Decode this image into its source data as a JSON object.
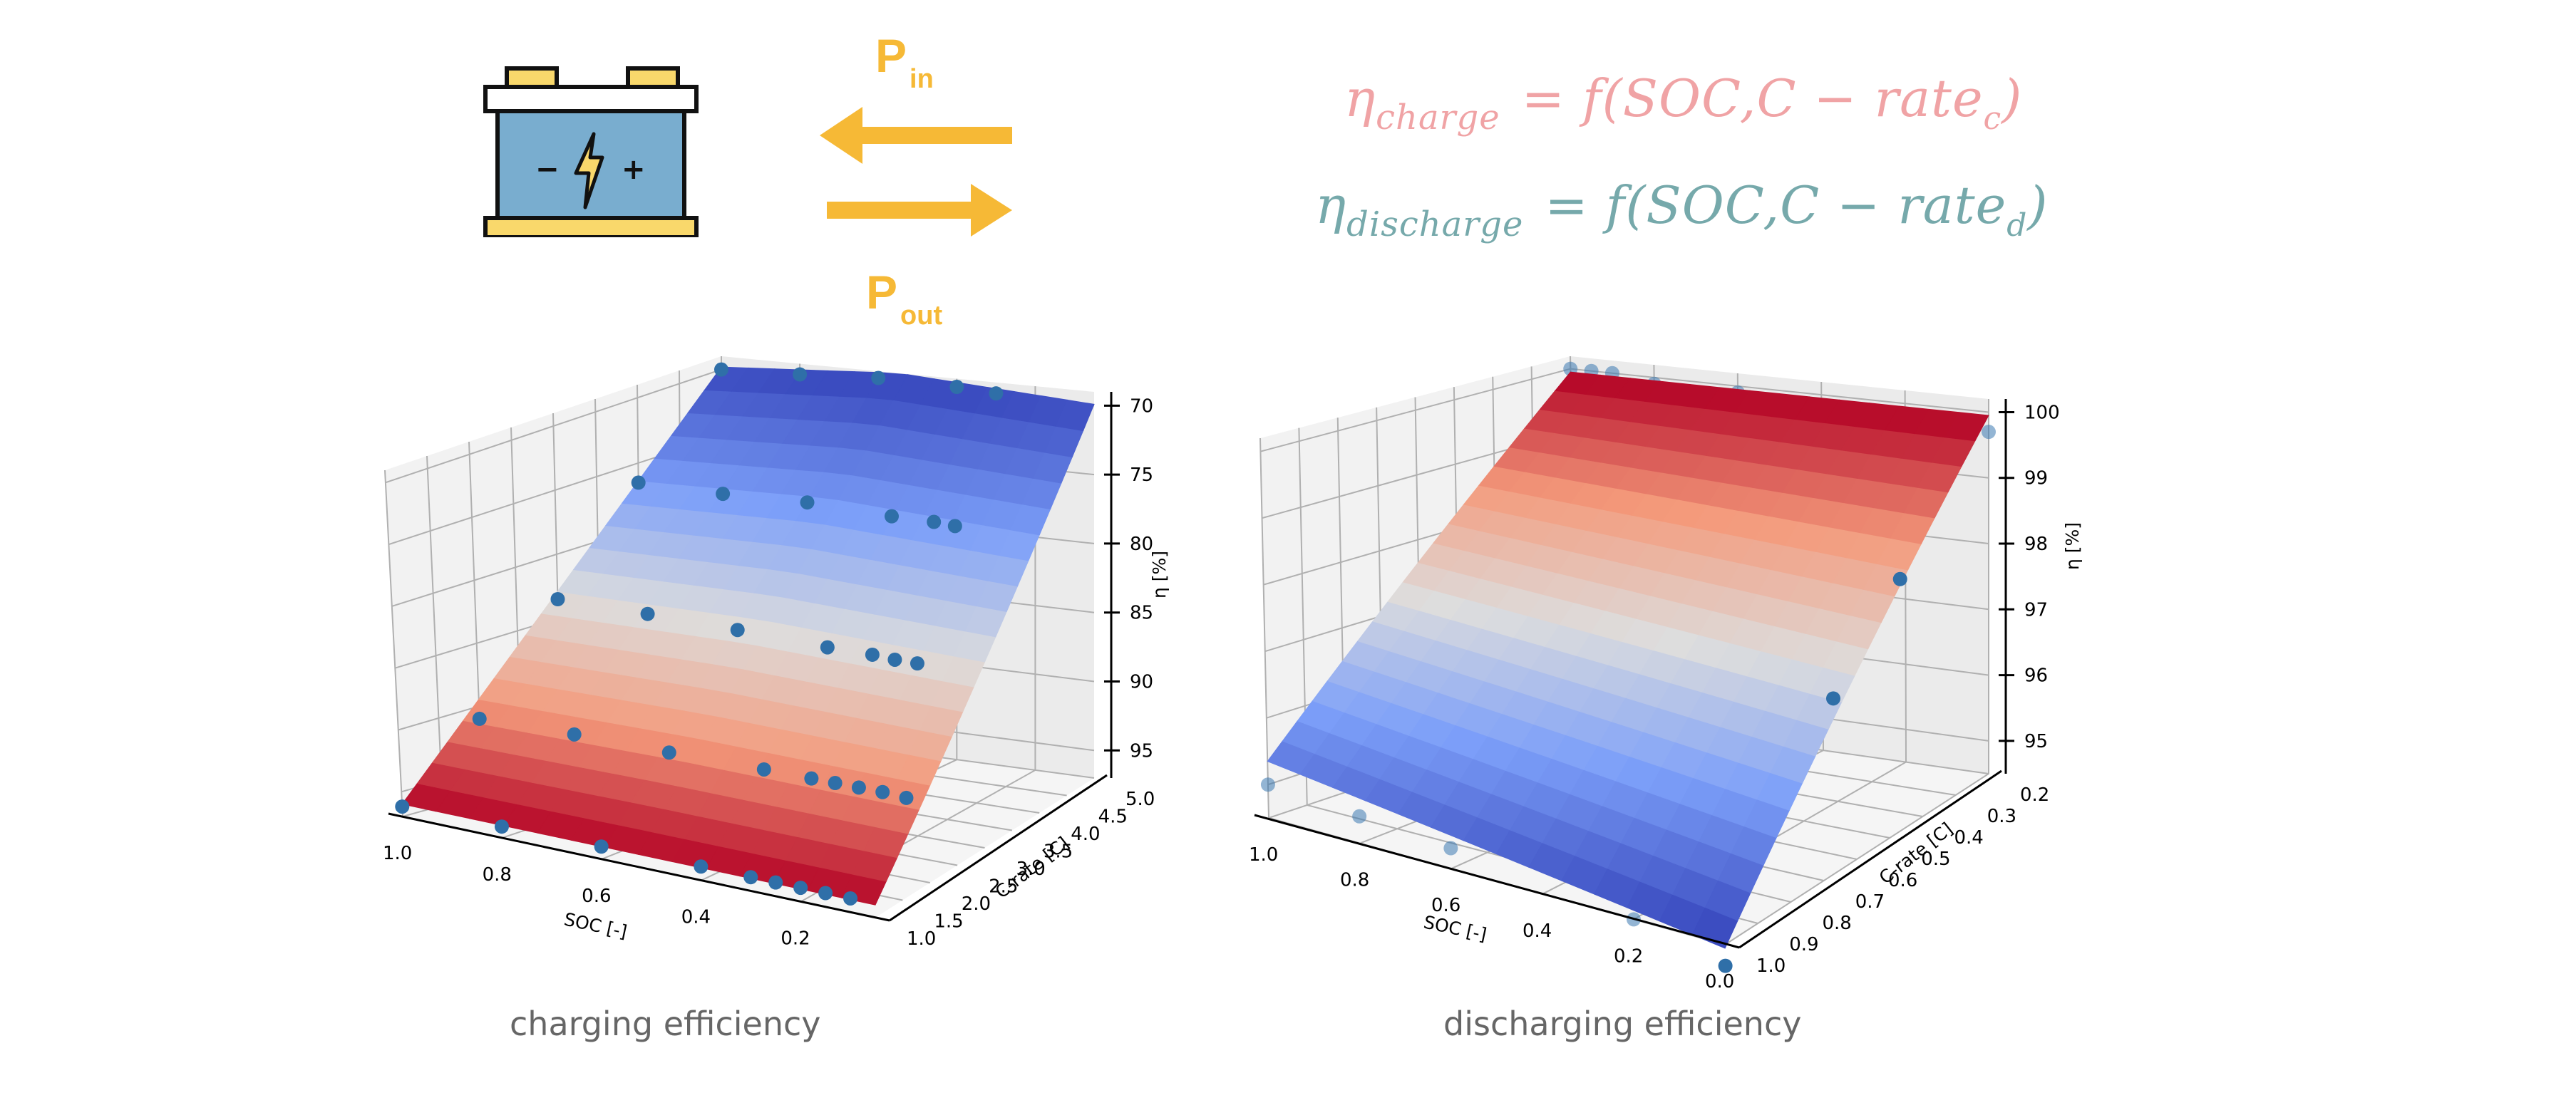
{
  "header": {
    "battery_icon": "battery-icon",
    "battery_minus": "−",
    "battery_plus": "+",
    "p_in": {
      "main": "P",
      "sub": "in"
    },
    "p_out": {
      "main": "P",
      "sub": "out"
    },
    "arrow_in_icon": "arrow-left-icon",
    "arrow_out_icon": "arrow-right-icon"
  },
  "formulas": {
    "charge": {
      "eta": "η",
      "sub": "charge",
      "eq": "=",
      "rhs": "f(SOC,C − rate",
      "rhs_sub": "c",
      "close": ")"
    },
    "discharge": {
      "eta": "η",
      "sub": "discharge",
      "eq": "=",
      "rhs": "f(SOC,C − rate",
      "rhs_sub": "d",
      "close": ")"
    }
  },
  "colors": {
    "accent_orange": "#f6b936",
    "charge_formula": "#f0a3a5",
    "discharge_formula": "#76a9ab",
    "battery_body": "#79adcf",
    "battery_terminal": "#f9d86b",
    "data_point": "#3a78b0",
    "caption": "#666666"
  },
  "captions": {
    "left": "charging efficiency",
    "right": "discharging efficiency"
  },
  "chart_data": [
    {
      "type": "surface3d",
      "title": "charging efficiency",
      "xlabel": "SOC [-]",
      "ylabel": "C-rate [C]",
      "zlabel": "η [%]",
      "colormap": "coolwarm",
      "x_ticks": [
        "1.0",
        "0.8",
        "0.6",
        "0.4",
        "0.2"
      ],
      "y_ticks": [
        "1.0",
        "1.5",
        "2.0",
        "2.5",
        "3.0",
        "3.5",
        "4.0",
        "4.5",
        "5.0"
      ],
      "z_ticks": [
        "70",
        "75",
        "80",
        "85",
        "90",
        "95"
      ],
      "xlim": [
        1.0,
        0.05
      ],
      "ylim": [
        1.0,
        5.0
      ],
      "zlim": [
        97,
        69
      ],
      "z_inverted": true,
      "surface": {
        "eta_at_c_min": 96,
        "eta_at_c_max": 70
      },
      "series": [
        {
          "name": "C=1.0",
          "c_rate": 1.0,
          "points": [
            [
              1.0,
              96.2
            ],
            [
              0.8,
              96.1
            ],
            [
              0.6,
              96.0
            ],
            [
              0.4,
              95.9
            ],
            [
              0.3,
              95.9
            ],
            [
              0.25,
              95.9
            ],
            [
              0.2,
              95.9
            ],
            [
              0.15,
              95.9
            ],
            [
              0.1,
              95.9
            ]
          ]
        },
        {
          "name": "C=2.0",
          "c_rate": 2.0,
          "points": [
            [
              1.0,
              91.0
            ],
            [
              0.8,
              90.8
            ],
            [
              0.6,
              90.8
            ],
            [
              0.4,
              90.7
            ],
            [
              0.3,
              90.7
            ],
            [
              0.25,
              90.7
            ],
            [
              0.2,
              90.7
            ],
            [
              0.15,
              90.7
            ],
            [
              0.1,
              90.8
            ]
          ]
        },
        {
          "name": "C=3.0",
          "c_rate": 3.0,
          "points": [
            [
              1.0,
              83.5
            ],
            [
              0.8,
              83.5
            ],
            [
              0.6,
              83.6
            ],
            [
              0.4,
              83.8
            ],
            [
              0.3,
              83.8
            ],
            [
              0.25,
              83.9
            ],
            [
              0.2,
              83.9
            ]
          ]
        },
        {
          "name": "C=4.0",
          "c_rate": 4.0,
          "points": [
            [
              1.0,
              76.5
            ],
            [
              0.8,
              76.5
            ],
            [
              0.6,
              76.3
            ],
            [
              0.4,
              76.5
            ],
            [
              0.3,
              76.5
            ],
            [
              0.25,
              76.6
            ]
          ]
        },
        {
          "name": "C=5.0",
          "c_rate": 5.0,
          "points": [
            [
              1.0,
              70.0
            ],
            [
              0.8,
              69.8
            ],
            [
              0.6,
              69.5
            ],
            [
              0.4,
              69.6
            ],
            [
              0.3,
              69.8
            ]
          ]
        }
      ]
    },
    {
      "type": "surface3d",
      "title": "discharging efficiency",
      "xlabel": "SOC [-]",
      "ylabel": "C-rate [C]",
      "zlabel": "η [%]",
      "colormap": "coolwarm",
      "x_ticks": [
        "1.0",
        "0.8",
        "0.6",
        "0.4",
        "0.2",
        "0.0"
      ],
      "y_ticks": [
        "1.0",
        "0.9",
        "0.8",
        "0.7",
        "0.6",
        "0.5",
        "0.4",
        "0.3",
        "0.2"
      ],
      "z_ticks": [
        "95",
        "96",
        "97",
        "98",
        "99",
        "100"
      ],
      "xlim": [
        1.0,
        0.0
      ],
      "ylim": [
        1.0,
        0.2
      ],
      "zlim": [
        94.5,
        100.2
      ],
      "surface": {
        "eta_at_c_max_soc_high": 95.2,
        "eta_at_c_max_soc_low": 94.3,
        "eta_at_c_min": 99.9
      },
      "series": [
        {
          "name": "C=1.0",
          "c_rate": 1.0,
          "points": [
            [
              1.0,
              95.0
            ],
            [
              0.8,
              94.9
            ],
            [
              0.6,
              94.8
            ],
            [
              0.2,
              94.5
            ],
            [
              0.0,
              94.2
            ]
          ]
        },
        {
          "name": "C=0.6",
          "c_rate": 0.6,
          "points": [
            [
              0.05,
              96.8
            ]
          ]
        },
        {
          "name": "C=0.4",
          "c_rate": 0.4,
          "points": [
            [
              0.05,
              98.0
            ]
          ]
        },
        {
          "name": "C=0.2",
          "c_rate": 0.2,
          "points": [
            [
              1.0,
              100.0
            ],
            [
              0.95,
              100.0
            ],
            [
              0.9,
              100.0
            ],
            [
              0.8,
              99.9
            ],
            [
              0.6,
              99.9
            ],
            [
              0.4,
              99.8
            ],
            [
              0.2,
              99.7
            ],
            [
              0.1,
              99.7
            ],
            [
              0.05,
              99.7
            ],
            [
              0.0,
              99.7
            ]
          ]
        }
      ]
    }
  ]
}
